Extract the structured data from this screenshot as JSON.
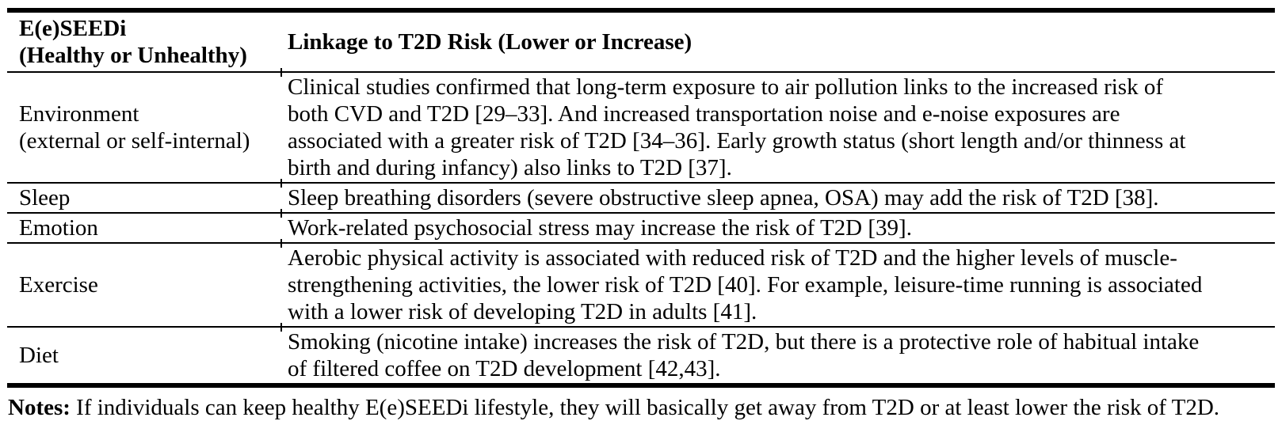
{
  "colors": {
    "text": "#000000",
    "background": "#ffffff",
    "border": "#000000"
  },
  "table": {
    "header": {
      "col1_line1": "E(e)SEEDi",
      "col1_line2": "(Healthy or Unhealthy)",
      "col2": "Linkage to T2D Risk (Lower or Increase)"
    },
    "rows": [
      {
        "factor": [
          "Environment",
          "(external or self-internal)"
        ],
        "linkage": [
          "Clinical studies confirmed that long-term exposure to air pollution links to the increased risk of",
          "both CVD and T2D [29–33]. And increased transportation noise and e-noise exposures are",
          "associated with a greater risk of T2D [34–36]. Early growth status (short length and/or thinness at",
          "birth and during infancy) also links to T2D [37]."
        ]
      },
      {
        "factor": [
          "Sleep"
        ],
        "linkage": [
          "Sleep breathing disorders (severe obstructive sleep apnea, OSA) may add the risk of T2D [38]."
        ]
      },
      {
        "factor": [
          "Emotion"
        ],
        "linkage": [
          "Work-related psychosocial stress may increase the risk of T2D [39]."
        ]
      },
      {
        "factor": [
          "Exercise"
        ],
        "linkage": [
          "Aerobic physical activity is associated with reduced risk of T2D and the higher levels of muscle-",
          "strengthening activities, the lower risk of T2D [40]. For example, leisure-time running is associated",
          "with a lower risk of developing T2D in adults [41]."
        ]
      },
      {
        "factor": [
          "Diet"
        ],
        "linkage": [
          "Smoking (nicotine intake) increases the risk of T2D, but there is a protective role of habitual intake",
          "of filtered coffee on T2D development [42,43]."
        ]
      }
    ],
    "notes": {
      "label": "Notes:",
      "text": " If individuals can keep healthy E(e)SEEDi lifestyle, they will basically get away from T2D or at least lower the risk of T2D."
    }
  }
}
